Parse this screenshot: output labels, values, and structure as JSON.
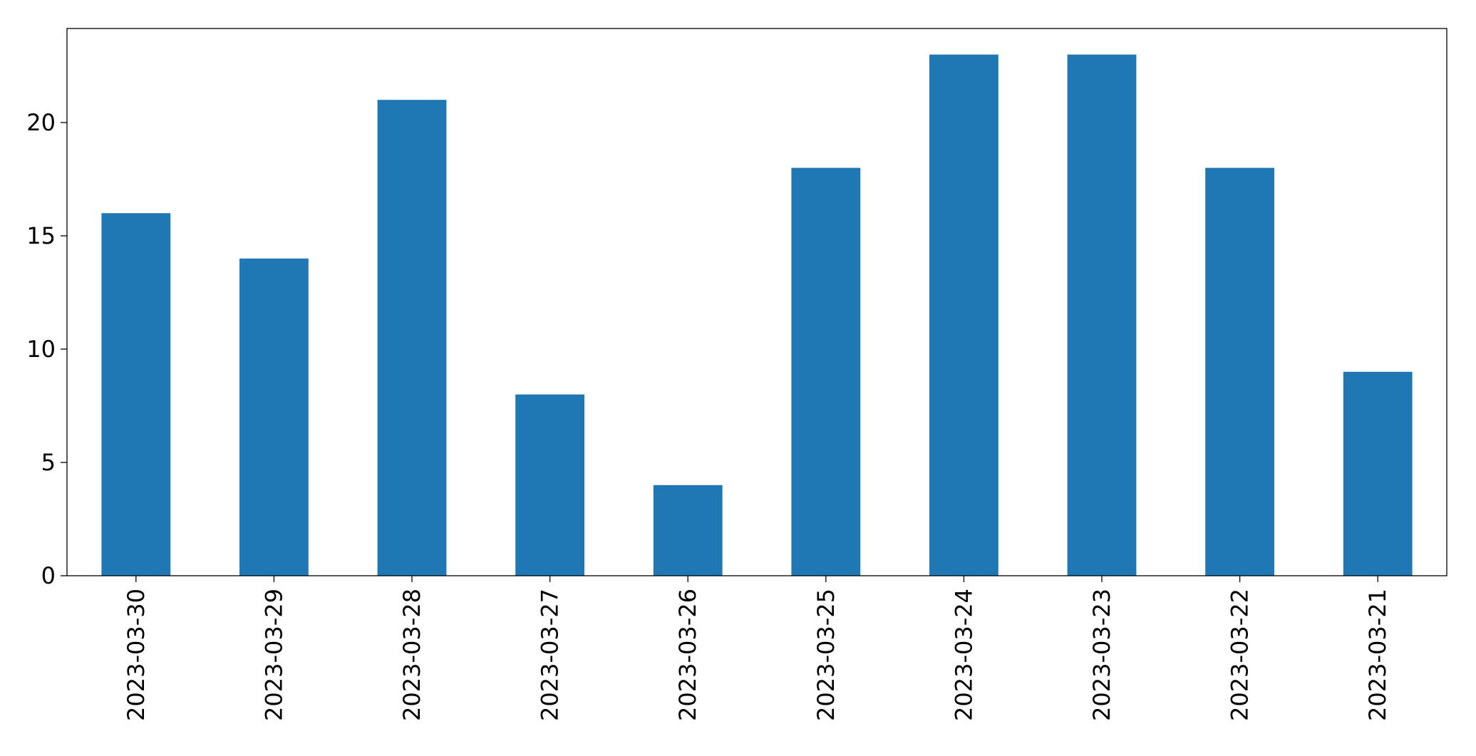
{
  "chart_data": {
    "type": "bar",
    "categories": [
      "2023-03-30",
      "2023-03-29",
      "2023-03-28",
      "2023-03-27",
      "2023-03-26",
      "2023-03-25",
      "2023-03-24",
      "2023-03-23",
      "2023-03-22",
      "2023-03-21"
    ],
    "values": [
      16,
      14,
      21,
      8,
      4,
      18,
      23,
      23,
      18,
      9
    ],
    "color": "#1f77b4",
    "ylim": [
      0,
      24.15
    ],
    "yticks": [
      0,
      5,
      10,
      15,
      20
    ],
    "grid": false
  }
}
